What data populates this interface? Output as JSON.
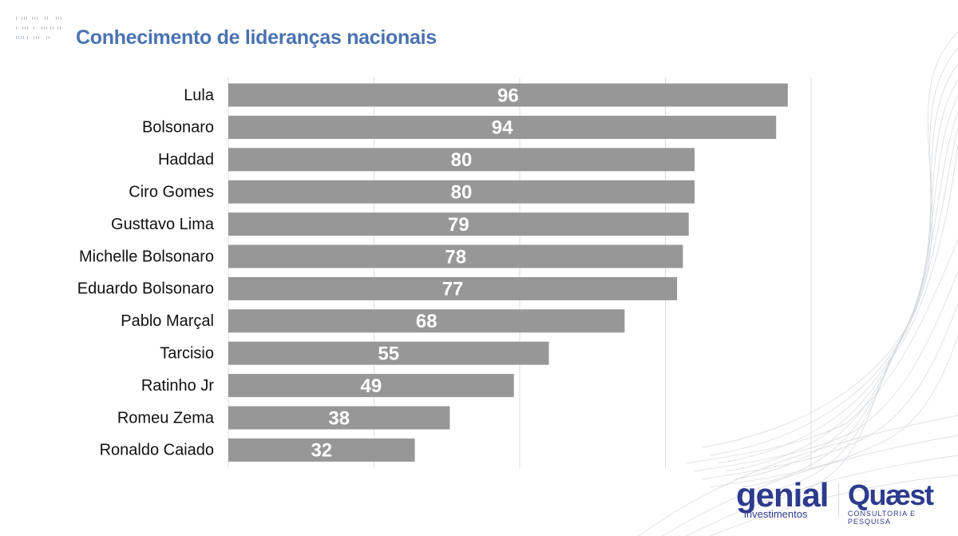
{
  "page": {
    "title": "Conhecimento de lideranças nacionais"
  },
  "logos": {
    "genial": {
      "name": "genial",
      "subtitle": "investimentos"
    },
    "quaest": {
      "name": "Quæst",
      "subtitle": "CONSULTORIA E PESQUISA"
    }
  },
  "colors": {
    "title": "#4a72b0",
    "bar": "#979797",
    "bar_label": "#ffffff",
    "brand": "#2d3b8e"
  },
  "chart_data": {
    "type": "bar",
    "orientation": "horizontal",
    "title": "Conhecimento de lideranças nacionais",
    "xlabel": "",
    "ylabel": "",
    "xlim": [
      0,
      100
    ],
    "grid": true,
    "grid_step": 25,
    "categories": [
      "Lula",
      "Bolsonaro",
      "Haddad",
      "Ciro Gomes",
      "Gusttavo Lima",
      "Michelle Bolsonaro",
      "Eduardo Bolsonaro",
      "Pablo Marçal",
      "Tarcisio",
      "Ratinho Jr",
      "Romeu Zema",
      "Ronaldo Caiado"
    ],
    "values": [
      96,
      94,
      80,
      80,
      79,
      78,
      77,
      68,
      55,
      49,
      38,
      32
    ],
    "data_labels": [
      "96",
      "94",
      "80",
      "80",
      "79",
      "78",
      "77",
      "68",
      "55",
      "49",
      "38",
      "32"
    ],
    "legend": "none"
  }
}
